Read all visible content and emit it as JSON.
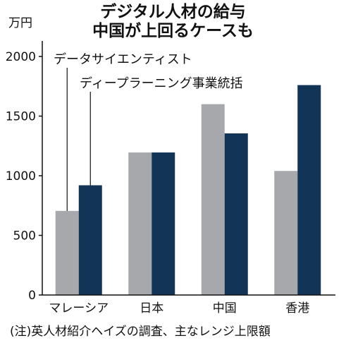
{
  "chart_data": {
    "type": "bar",
    "title": "デジタル人材の給与\n中国が上回るケースも",
    "title_lines": [
      "デジタル人材の給与",
      "中国が上回るケースも"
    ],
    "unit_label": "万円",
    "categories": [
      "マレーシア",
      "日本",
      "中国",
      "香港"
    ],
    "series": [
      {
        "name": "データサイエンティスト",
        "values": [
          705,
          1195,
          1600,
          1040
        ],
        "color": "#a6a8ab"
      },
      {
        "name": "ディープラーニング事業統括",
        "values": [
          920,
          1195,
          1355,
          1760
        ],
        "color": "#123456"
      }
    ],
    "yticks": [
      0,
      500,
      1000,
      1500,
      2000
    ],
    "ylim": [
      0,
      2000
    ],
    "legend_placement": "top-left",
    "grid": false,
    "note": "(注)英人材紹介ヘイズの調査、主なレンジ上限額"
  }
}
